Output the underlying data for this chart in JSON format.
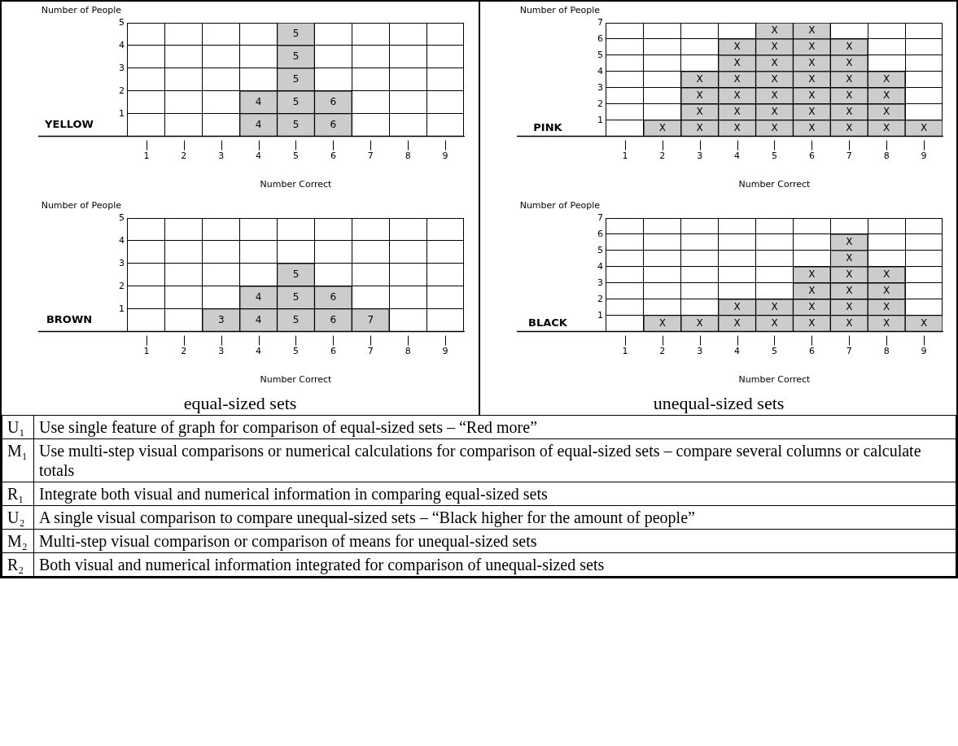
{
  "chart_data": [
    {
      "type": "bar",
      "stacked": true,
      "title": "YELLOW",
      "xlabel": "Number Correct",
      "ylabel": "Number of People",
      "categories": [
        "1",
        "2",
        "3",
        "4",
        "5",
        "6",
        "7",
        "8",
        "9"
      ],
      "ylim": [
        0,
        5
      ],
      "yticks": [
        1,
        2,
        3,
        4,
        5
      ],
      "grid": true,
      "series": [
        {
          "color": "#cccccc",
          "values": [
            null,
            null,
            null,
            1,
            1,
            1,
            null,
            null,
            null
          ]
        },
        {
          "color": "#cccccc",
          "values": [
            null,
            null,
            null,
            1,
            1,
            1,
            null,
            null,
            null
          ]
        },
        {
          "color": "#cccccc",
          "values": [
            null,
            null,
            null,
            null,
            1,
            null,
            null,
            null,
            null
          ]
        },
        {
          "color": "#cccccc",
          "values": [
            null,
            null,
            null,
            null,
            1,
            null,
            null,
            null,
            null
          ]
        },
        {
          "color": "#cccccc",
          "values": [
            null,
            null,
            null,
            null,
            1,
            null,
            null,
            null,
            null
          ]
        }
      ],
      "annotations": [
        {
          "text": "4",
          "x": "4",
          "y": 1
        },
        {
          "text": "4",
          "x": "4",
          "y": 2
        },
        {
          "text": "5",
          "x": "5",
          "y": 1
        },
        {
          "text": "5",
          "x": "5",
          "y": 2
        },
        {
          "text": "5",
          "x": "5",
          "y": 3
        },
        {
          "text": "5",
          "x": "5",
          "y": 4
        },
        {
          "text": "5",
          "x": "5",
          "y": 5
        },
        {
          "text": "6",
          "x": "6",
          "y": 1
        },
        {
          "text": "6",
          "x": "6",
          "y": 2
        }
      ]
    },
    {
      "type": "bar",
      "stacked": true,
      "title": "PINK",
      "xlabel": "Number Correct",
      "ylabel": "Number of People",
      "categories": [
        "1",
        "2",
        "3",
        "4",
        "5",
        "6",
        "7",
        "8",
        "9"
      ],
      "ylim": [
        0,
        7
      ],
      "yticks": [
        1,
        2,
        3,
        4,
        5,
        6,
        7
      ],
      "grid": true,
      "series": [
        {
          "color": "#cccccc",
          "values": [
            null,
            1,
            1,
            1,
            1,
            1,
            1,
            1,
            1
          ],
          "value_labels": [
            null,
            "X",
            "X",
            "X",
            "X",
            "X",
            "X",
            "X",
            "X"
          ]
        },
        {
          "color": "#cccccc",
          "values": [
            null,
            null,
            1,
            1,
            1,
            1,
            1,
            1,
            null
          ],
          "value_labels": [
            null,
            null,
            "X",
            "X",
            "X",
            "X",
            "X",
            "X",
            null
          ]
        },
        {
          "color": "#cccccc",
          "values": [
            null,
            null,
            1,
            1,
            1,
            1,
            1,
            1,
            null
          ],
          "value_labels": [
            null,
            null,
            "X",
            "X",
            "X",
            "X",
            "X",
            "X",
            null
          ]
        },
        {
          "color": "#cccccc",
          "values": [
            null,
            null,
            1,
            1,
            1,
            1,
            1,
            1,
            null
          ],
          "value_labels": [
            null,
            null,
            "X",
            "X",
            "X",
            "X",
            "X",
            "X",
            null
          ]
        },
        {
          "color": "#cccccc",
          "values": [
            null,
            null,
            null,
            1,
            1,
            1,
            1,
            null,
            null
          ],
          "value_labels": [
            null,
            null,
            null,
            "X",
            "X",
            "X",
            "X",
            null,
            null
          ]
        },
        {
          "color": "#cccccc",
          "values": [
            null,
            null,
            null,
            1,
            1,
            1,
            1,
            null,
            null
          ],
          "value_labels": [
            null,
            null,
            null,
            "X",
            "X",
            "X",
            "X",
            null,
            null
          ]
        },
        {
          "color": "#cccccc",
          "values": [
            null,
            null,
            null,
            null,
            1,
            1,
            null,
            null,
            null
          ],
          "value_labels": [
            null,
            null,
            null,
            null,
            "X",
            "X",
            null,
            null,
            null
          ]
        }
      ]
    },
    {
      "type": "bar",
      "stacked": true,
      "title": "BROWN",
      "xlabel": "Number Correct",
      "ylabel": "Number of People",
      "categories": [
        "1",
        "2",
        "3",
        "4",
        "5",
        "6",
        "7",
        "8",
        "9"
      ],
      "ylim": [
        0,
        5
      ],
      "yticks": [
        1,
        2,
        3,
        4,
        5
      ],
      "grid": true,
      "series": [
        {
          "color": "#cccccc",
          "values": [
            null,
            null,
            1,
            1,
            1,
            1,
            1,
            null,
            null
          ]
        },
        {
          "color": "#cccccc",
          "values": [
            null,
            null,
            null,
            1,
            1,
            1,
            null,
            null,
            null
          ]
        },
        {
          "color": "#cccccc",
          "values": [
            null,
            null,
            null,
            null,
            1,
            null,
            null,
            null,
            null
          ]
        }
      ],
      "annotations": [
        "equal-sized sets",
        {
          "text": "3",
          "x": "3",
          "y": 1
        },
        {
          "text": "4",
          "x": "4",
          "y": 1
        },
        {
          "text": "4",
          "x": "4",
          "y": 2
        },
        {
          "text": "5",
          "x": "5",
          "y": 1
        },
        {
          "text": "5",
          "x": "5",
          "y": 2
        },
        {
          "text": "5",
          "x": "5",
          "y": 3
        },
        {
          "text": "6",
          "x": "6",
          "y": 1
        },
        {
          "text": "6",
          "x": "6",
          "y": 2
        },
        {
          "text": "7",
          "x": "7",
          "y": 1
        }
      ]
    },
    {
      "type": "bar",
      "stacked": true,
      "title": "BLACK",
      "xlabel": "Number Correct",
      "ylabel": "Number of People",
      "categories": [
        "1",
        "2",
        "3",
        "4",
        "5",
        "6",
        "7",
        "8",
        "9"
      ],
      "ylim": [
        0,
        7
      ],
      "yticks": [
        1,
        2,
        3,
        4,
        5,
        6,
        7
      ],
      "grid": true,
      "annotations": [
        "unequal-sized sets"
      ],
      "series": [
        {
          "color": "#cccccc",
          "values": [
            null,
            1,
            1,
            1,
            1,
            1,
            1,
            1,
            1
          ],
          "value_labels": [
            null,
            "X",
            "X",
            "X",
            "X",
            "X",
            "X",
            "X",
            "X"
          ]
        },
        {
          "color": "#cccccc",
          "values": [
            null,
            null,
            null,
            1,
            1,
            1,
            1,
            1,
            null
          ],
          "value_labels": [
            null,
            null,
            null,
            "X",
            "X",
            "X",
            "X",
            "X",
            null
          ]
        },
        {
          "color": "#cccccc",
          "values": [
            null,
            null,
            null,
            null,
            null,
            1,
            1,
            1,
            null
          ],
          "value_labels": [
            null,
            null,
            null,
            null,
            null,
            "X",
            "X",
            "X",
            null
          ]
        },
        {
          "color": "#cccccc",
          "values": [
            null,
            null,
            null,
            null,
            null,
            1,
            1,
            1,
            null
          ],
          "value_labels": [
            null,
            null,
            null,
            null,
            null,
            "X",
            "X",
            "X",
            null
          ]
        },
        {
          "color": "#cccccc",
          "values": [
            null,
            null,
            null,
            null,
            null,
            null,
            1,
            null,
            null
          ],
          "value_labels": [
            null,
            null,
            null,
            null,
            null,
            null,
            "X",
            null,
            null
          ]
        },
        {
          "color": "#cccccc",
          "values": [
            null,
            null,
            null,
            null,
            null,
            null,
            1,
            null,
            null
          ],
          "value_labels": [
            null,
            null,
            null,
            null,
            null,
            null,
            "X",
            null,
            null
          ]
        }
      ]
    },
    {
      "type": "other",
      "annotations": [
        "U₁",
        "Use single feature of graph for comparison of equal-sized sets – “Red more”",
        "M₁",
        "Use multi-step visual comparisons or numerical calculations for comparison of equal-sized sets – compare several columns or calculate totals",
        "R₁",
        "Integrate both visual and numerical information in comparing equal-sized sets",
        "U₂",
        "A single visual comparison to compare unequal-sized sets – “Black higher for the amount of people”",
        "M₂",
        "Multi-step visual comparison or comparison of means for unequal-sized sets",
        "R₂",
        "Both visual and numerical information integrated for comparison of unequal-sized sets"
      ]
    }
  ]
}
